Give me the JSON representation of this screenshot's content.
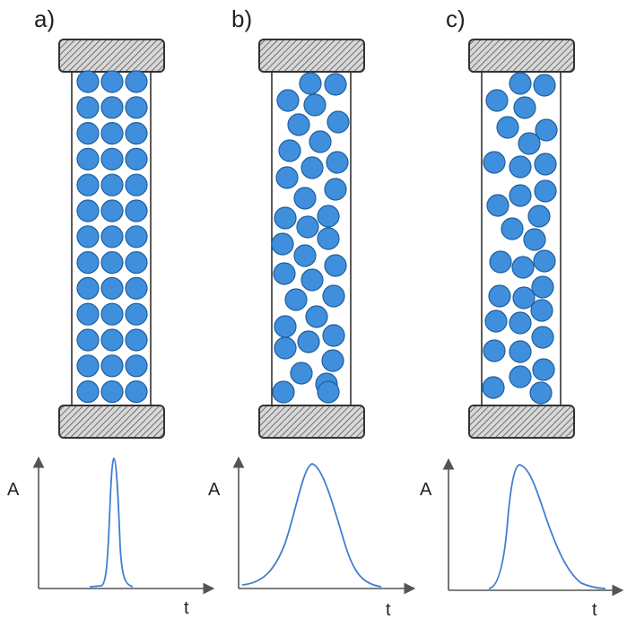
{
  "panels": [
    {
      "label": "a)",
      "y_axis_label": "A",
      "x_axis_label": "t",
      "packing": "ordered"
    },
    {
      "label": "b)",
      "y_axis_label": "A",
      "x_axis_label": "t",
      "packing": "random"
    },
    {
      "label": "c)",
      "y_axis_label": "A",
      "x_axis_label": "t",
      "packing": "channeled"
    }
  ],
  "colors": {
    "bead_fill": "#3f8fdc",
    "bead_stroke": "#1f5f9f",
    "peak_line": "#3f7fd0",
    "outline": "#333333"
  }
}
